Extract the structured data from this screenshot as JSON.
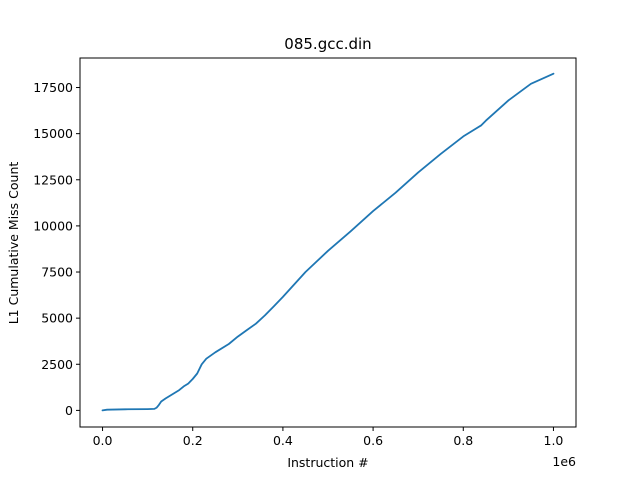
{
  "chart_data": {
    "type": "line",
    "title": "085.gcc.din",
    "xlabel": "Instruction #",
    "ylabel": "L1 Cumulative Miss Count",
    "x_offset_label": "1e6",
    "xlim": [
      -0.05,
      1.05
    ],
    "ylim": [
      -900,
      19100
    ],
    "x_ticks": [
      0.0,
      0.2,
      0.4,
      0.6,
      0.8,
      1.0
    ],
    "x_tick_labels": [
      "0.0",
      "0.2",
      "0.4",
      "0.6",
      "0.8",
      "1.0"
    ],
    "y_ticks": [
      0,
      2500,
      5000,
      7500,
      10000,
      12500,
      15000,
      17500
    ],
    "y_tick_labels": [
      "0",
      "2500",
      "5000",
      "7500",
      "10000",
      "12500",
      "15000",
      "17500"
    ],
    "grid": false,
    "series": [
      {
        "color": "#1f77b4",
        "x": [
          0.0,
          0.01,
          0.05,
          0.1,
          0.115,
          0.12,
          0.125,
          0.13,
          0.14,
          0.15,
          0.17,
          0.18,
          0.19,
          0.2,
          0.21,
          0.22,
          0.23,
          0.25,
          0.28,
          0.3,
          0.32,
          0.34,
          0.36,
          0.38,
          0.4,
          0.45,
          0.5,
          0.55,
          0.6,
          0.65,
          0.7,
          0.75,
          0.8,
          0.84,
          0.85,
          0.9,
          0.95,
          1.0
        ],
        "y": [
          0,
          40,
          60,
          70,
          80,
          150,
          300,
          480,
          650,
          800,
          1100,
          1300,
          1450,
          1700,
          2000,
          2500,
          2800,
          3150,
          3600,
          4000,
          4350,
          4700,
          5150,
          5650,
          6150,
          7500,
          8650,
          9700,
          10800,
          11800,
          12900,
          13900,
          14850,
          15450,
          15700,
          16800,
          17700,
          18250
        ]
      }
    ]
  }
}
